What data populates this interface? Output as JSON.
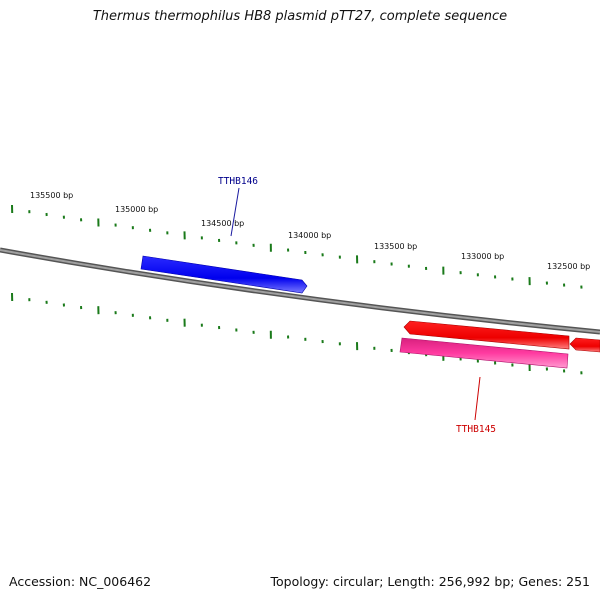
{
  "title": "Thermus thermophilus HB8 plasmid pTT27, complete sequence",
  "footer": {
    "accession": "Accession: NC_006462",
    "summary": "Topology: circular; Length: 256,992 bp; Genes: 251"
  },
  "scale_labels": [
    "135500 bp",
    "135000 bp",
    "134500 bp",
    "134000 bp",
    "133500 bp",
    "133000 bp",
    "132500 bp"
  ],
  "genes": [
    {
      "label": "TTHB146",
      "strand": "forward",
      "color": "#0000ff",
      "label_color": "#00008b"
    },
    {
      "label": "TTHB145",
      "strand": "reverse",
      "color": "#ff0000",
      "label_color": "#cc0000"
    }
  ],
  "colors": {
    "backbone": "#777777",
    "ticks": "#1a7a1a",
    "forward_gene": "#0000ff",
    "reverse_gene": "#ff0000",
    "reverse_gene_alt": "#ff3aa0"
  }
}
